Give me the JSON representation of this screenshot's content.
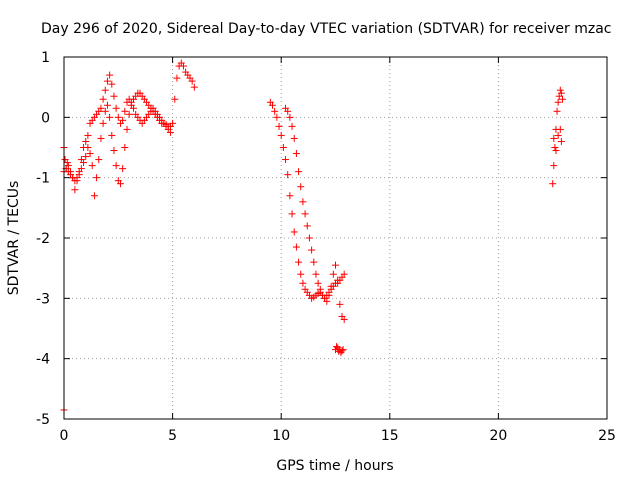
{
  "chart_data": {
    "type": "scatter",
    "title": "Day 296 of 2020, Sidereal Day-to-day VTEC variation (SDTVAR) for receiver mzac",
    "xlabel": "GPS time / hours",
    "ylabel": "SDTVAR / TECUs",
    "xlim": [
      0,
      25
    ],
    "ylim": [
      -5,
      1
    ],
    "xticks": [
      0,
      5,
      10,
      15,
      20,
      25
    ],
    "yticks": [
      -5,
      -4,
      -3,
      -2,
      -1,
      0,
      1
    ],
    "xtick_labels": [
      "0",
      "5",
      "10",
      "15",
      "20",
      "25"
    ],
    "ytick_labels": [
      "-5",
      "-4",
      "-3",
      "-2",
      "-1",
      "0",
      "1"
    ],
    "grid": true,
    "marker": "+",
    "color": "#ff0000",
    "series": [
      {
        "name": "SDTVAR",
        "x": [
          0.0,
          0.05,
          0.1,
          0.15,
          0.2,
          0.3,
          0.4,
          0.5,
          0.6,
          0.7,
          0.8,
          0.9,
          1.0,
          1.1,
          1.2,
          1.3,
          1.4,
          1.5,
          1.6,
          1.7,
          1.8,
          1.9,
          2.0,
          2.1,
          2.2,
          2.3,
          2.4,
          2.5,
          2.6,
          2.7,
          2.8,
          2.9,
          3.0,
          3.1,
          3.2,
          3.3,
          3.4,
          3.5,
          3.6,
          3.7,
          3.8,
          3.9,
          4.0,
          4.1,
          4.2,
          4.3,
          4.4,
          4.5,
          4.6,
          4.7,
          4.8,
          4.9,
          5.0,
          5.1,
          5.2,
          5.3,
          5.4,
          5.5,
          5.6,
          5.7,
          5.8,
          5.9,
          6.0,
          0.0,
          0.1,
          0.2,
          0.3,
          0.4,
          0.5,
          0.6,
          0.7,
          0.8,
          0.9,
          1.0,
          1.1,
          1.2,
          1.3,
          1.4,
          1.5,
          1.6,
          1.7,
          1.8,
          1.9,
          2.0,
          2.1,
          2.2,
          2.3,
          2.4,
          2.5,
          2.6,
          2.7,
          2.8,
          2.9,
          3.0,
          3.1,
          3.2,
          3.3,
          3.4,
          3.5,
          3.6,
          3.7,
          3.8,
          3.9,
          4.0,
          4.1,
          4.2,
          4.3,
          4.4,
          4.5,
          4.6,
          4.7,
          4.8,
          4.9,
          9.5,
          9.6,
          9.7,
          9.8,
          9.9,
          10.0,
          10.1,
          10.2,
          10.3,
          10.4,
          10.5,
          10.6,
          10.7,
          10.8,
          10.9,
          11.0,
          11.1,
          11.2,
          11.3,
          11.4,
          11.5,
          11.6,
          11.7,
          11.8,
          11.9,
          12.0,
          12.1,
          12.2,
          12.3,
          12.4,
          12.5,
          12.6,
          12.7,
          12.8,
          12.9,
          10.2,
          10.3,
          10.4,
          10.5,
          10.6,
          10.7,
          10.8,
          10.9,
          11.0,
          11.1,
          11.2,
          11.3,
          11.4,
          11.5,
          11.6,
          11.7,
          11.8,
          11.9,
          12.0,
          12.1,
          12.2,
          12.3,
          12.4,
          12.5,
          12.6,
          12.7,
          12.8,
          12.9,
          12.5,
          12.55,
          12.6,
          12.65,
          12.7,
          12.75,
          12.8,
          12.85,
          22.5,
          22.55,
          22.6,
          22.65,
          22.7,
          22.75,
          22.8,
          22.85,
          22.9,
          22.95,
          22.55,
          22.65,
          22.75,
          22.85,
          22.9,
          0.0
        ],
        "y": [
          -0.5,
          -0.7,
          -0.85,
          -0.75,
          -0.8,
          -0.9,
          -1.0,
          -1.2,
          -1.05,
          -0.9,
          -0.7,
          -0.5,
          -0.4,
          -0.3,
          -0.1,
          -0.05,
          0.0,
          0.05,
          0.1,
          0.15,
          0.3,
          0.45,
          0.6,
          0.7,
          0.55,
          0.35,
          0.15,
          0.0,
          -0.1,
          -0.05,
          0.1,
          0.25,
          0.3,
          0.25,
          0.15,
          0.05,
          0.0,
          -0.05,
          -0.1,
          -0.05,
          0.0,
          0.05,
          0.1,
          0.15,
          0.1,
          0.05,
          0.0,
          -0.05,
          -0.1,
          -0.15,
          -0.2,
          -0.25,
          -0.1,
          0.3,
          0.65,
          0.85,
          0.9,
          0.85,
          0.75,
          0.7,
          0.65,
          0.6,
          0.5,
          -0.9,
          -0.85,
          -0.9,
          -0.95,
          -1.0,
          -1.05,
          -1.0,
          -0.95,
          -0.85,
          -0.75,
          -0.65,
          -0.5,
          -0.6,
          -0.8,
          -1.3,
          -1.0,
          -0.7,
          -0.35,
          -0.1,
          0.1,
          0.2,
          0.0,
          -0.3,
          -0.55,
          -0.8,
          -1.05,
          -1.1,
          -0.85,
          -0.5,
          -0.2,
          0.05,
          0.2,
          0.3,
          0.35,
          0.4,
          0.4,
          0.35,
          0.3,
          0.25,
          0.2,
          0.15,
          0.1,
          0.05,
          0.0,
          -0.05,
          -0.1,
          -0.1,
          -0.12,
          -0.15,
          -0.15,
          0.25,
          0.2,
          0.1,
          0.0,
          -0.15,
          -0.3,
          -0.5,
          -0.7,
          -0.95,
          -1.3,
          -1.6,
          -1.9,
          -2.15,
          -2.4,
          -2.6,
          -2.75,
          -2.85,
          -2.9,
          -2.95,
          -3.0,
          -2.98,
          -2.95,
          -2.92,
          -2.9,
          -2.95,
          -3.0,
          -3.05,
          -2.95,
          -2.8,
          -2.6,
          -2.45,
          -2.75,
          -3.1,
          -3.3,
          -3.35,
          0.15,
          0.1,
          0.0,
          -0.15,
          -0.35,
          -0.6,
          -0.9,
          -1.15,
          -1.4,
          -1.6,
          -1.8,
          -2.0,
          -2.2,
          -2.4,
          -2.6,
          -2.75,
          -2.85,
          -2.95,
          -3.0,
          -2.95,
          -2.9,
          -2.85,
          -2.8,
          -2.75,
          -2.7,
          -2.7,
          -2.65,
          -2.6,
          -3.85,
          -3.8,
          -3.82,
          -3.88,
          -3.85,
          -3.9,
          -3.87,
          -3.85,
          -1.1,
          -0.8,
          -0.5,
          -0.2,
          0.1,
          0.25,
          0.35,
          0.45,
          0.4,
          0.3,
          -0.35,
          -0.55,
          -0.3,
          -0.2,
          -0.4,
          -4.85
        ]
      }
    ]
  }
}
